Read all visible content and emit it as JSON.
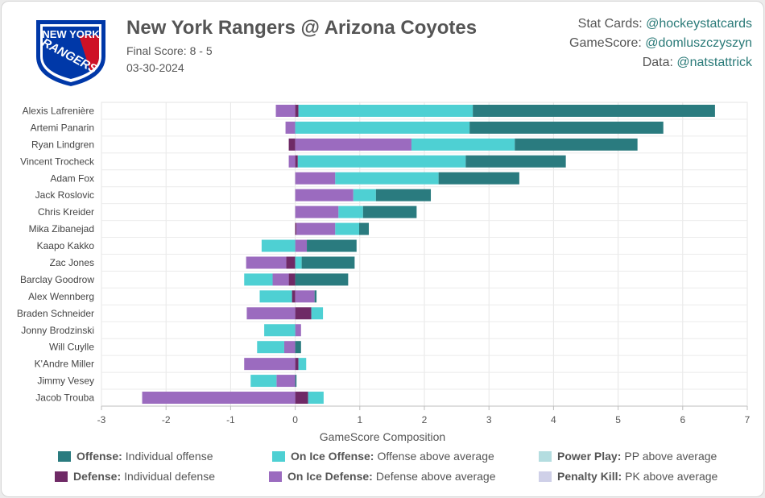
{
  "header": {
    "title": "New York Rangers @ Arizona Coyotes",
    "final_score": "Final Score: 8 - 5",
    "date": "03-30-2024",
    "logo_text_top": "NEW YORK",
    "logo_text_bottom": "RANGERS"
  },
  "credits": [
    {
      "label": "Stat Cards:",
      "handle": "@hockeystatcards"
    },
    {
      "label": "GameScore:",
      "handle": "@domluszczyszyn"
    },
    {
      "label": "Data:",
      "handle": "@natstattrick"
    }
  ],
  "colors": {
    "offense": "#2a7b7f",
    "onice_offense": "#4ed0d3",
    "powerplay": "#b4dde0",
    "defense": "#6f2a66",
    "onice_defense": "#9b6bbf",
    "penaltykill": "#cfd0e8"
  },
  "legend": [
    {
      "key": "offense",
      "bold": "Offense:",
      "text": "Individual offense"
    },
    {
      "key": "onice_offense",
      "bold": "On Ice Offense:",
      "text": "Offense above average"
    },
    {
      "key": "powerplay",
      "bold": "Power Play:",
      "text": "PP above average"
    },
    {
      "key": "defense",
      "bold": "Defense:",
      "text": "Individual defense"
    },
    {
      "key": "onice_defense",
      "bold": "On Ice Defense:",
      "text": "Defense above average"
    },
    {
      "key": "penaltykill",
      "bold": "Penalty Kill:",
      "text": "PK above average"
    }
  ],
  "chart_data": {
    "type": "bar",
    "orientation": "horizontal",
    "stacked": "diverging",
    "xlabel": "GameScore Composition",
    "xlim": [
      -3,
      7
    ],
    "xticks": [
      -3,
      -2,
      -1,
      0,
      1,
      2,
      3,
      4,
      5,
      6,
      7
    ],
    "grid": true,
    "legend_placement": "bottom",
    "component_order": [
      "defense",
      "onice_defense",
      "onice_offense",
      "offense"
    ],
    "players": [
      {
        "name": "Alexis Lafrenière",
        "offense": 3.75,
        "onice_offense": 2.7,
        "defense": 0.05,
        "onice_defense": -0.3
      },
      {
        "name": "Artemi Panarin",
        "offense": 3.0,
        "onice_offense": 2.7,
        "defense": 0,
        "onice_defense": -0.15
      },
      {
        "name": "Ryan Lindgren",
        "offense": 1.9,
        "onice_offense": 1.6,
        "defense": -0.1,
        "onice_defense": 1.8
      },
      {
        "name": "Vincent Trocheck",
        "offense": 1.55,
        "onice_offense": 2.6,
        "defense": 0.04,
        "onice_defense": -0.1
      },
      {
        "name": "Adam Fox",
        "offense": 1.25,
        "onice_offense": 1.6,
        "defense": 0,
        "onice_defense": 0.62
      },
      {
        "name": "Jack Roslovic",
        "offense": 0.85,
        "onice_offense": 0.35,
        "defense": 0,
        "onice_defense": 0.9
      },
      {
        "name": "Chris Kreider",
        "offense": 0.83,
        "onice_offense": 0.38,
        "defense": 0,
        "onice_defense": 0.67
      },
      {
        "name": "Mika Zibanejad",
        "offense": 0.15,
        "onice_offense": 0.37,
        "defense": 0.02,
        "onice_defense": 0.6
      },
      {
        "name": "Kaapo Kakko",
        "offense": 0.77,
        "onice_offense": -0.52,
        "defense": 0,
        "onice_defense": 0.18
      },
      {
        "name": "Zac Jones",
        "offense": 0.82,
        "onice_offense": 0.1,
        "defense": -0.14,
        "onice_defense": -0.62
      },
      {
        "name": "Barclay Goodrow",
        "offense": 0.82,
        "onice_offense": -0.44,
        "defense": -0.1,
        "onice_defense": -0.25
      },
      {
        "name": "Alex Wennberg",
        "offense": 0.03,
        "onice_offense": -0.5,
        "defense": -0.05,
        "onice_defense": 0.3
      },
      {
        "name": "Braden Schneider",
        "offense": 0,
        "onice_offense": 0.18,
        "defense": 0.25,
        "onice_defense": -0.75
      },
      {
        "name": "Jonny Brodzinski",
        "offense": 0,
        "onice_offense": -0.48,
        "defense": 0,
        "onice_defense": 0.09
      },
      {
        "name": "Will Cuylle",
        "offense": 0.09,
        "onice_offense": -0.42,
        "defense": 0,
        "onice_defense": -0.17
      },
      {
        "name": "K'Andre Miller",
        "offense": 0,
        "onice_offense": 0.12,
        "defense": 0.05,
        "onice_defense": -0.79
      },
      {
        "name": "Jimmy Vesey",
        "offense": 0.02,
        "onice_offense": -0.4,
        "defense": 0,
        "onice_defense": -0.29
      },
      {
        "name": "Jacob Trouba",
        "offense": 0,
        "onice_offense": 0.24,
        "defense": 0.2,
        "onice_defense": -2.37
      }
    ]
  }
}
